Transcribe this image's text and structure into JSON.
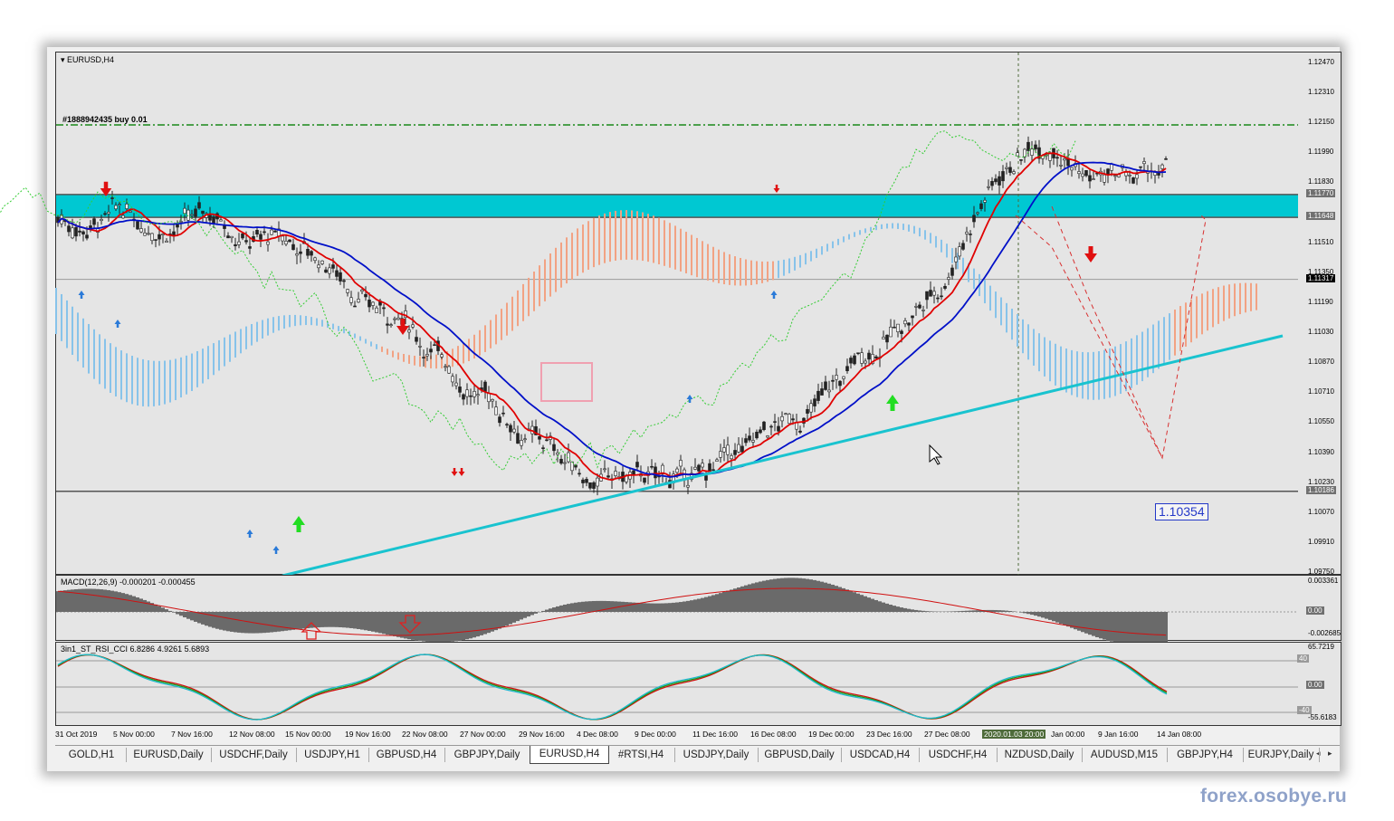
{
  "window": {
    "chart_title": "EURUSD,H4",
    "order_label": "#1888942435 buy 0.01"
  },
  "price_axis": {
    "levels": [
      "1.12470",
      "1.12310",
      "1.12150",
      "1.11990",
      "1.11830",
      "1.11510",
      "1.11350",
      "1.11190",
      "1.11030",
      "1.10870",
      "1.10710",
      "1.10550",
      "1.10390",
      "1.10230",
      "1.10070",
      "1.09910",
      "1.09750"
    ],
    "highlighted": [
      {
        "value": "1.11770",
        "color": "#707070"
      },
      {
        "value": "1.11648",
        "color": "#707070"
      },
      {
        "value": "1.11317",
        "color": "#000000"
      },
      {
        "value": "1.10186",
        "color": "#707070"
      }
    ]
  },
  "callout": {
    "value": "1.10354"
  },
  "macd": {
    "label": "MACD(12,26,9) -0.000201 -0.000455",
    "levels": [
      "0.003361",
      "0.00",
      "-0.002685"
    ]
  },
  "rsi": {
    "label": "3in1_ST_RSI_CCI 6.8286 4.9261 5.6893",
    "levels": [
      "65.7219",
      "0.00",
      "-55.6183"
    ],
    "marks": [
      "40",
      "-40"
    ]
  },
  "time_axis": {
    "labels": [
      "31 Oct 2019",
      "5 Nov 00:00",
      "7 Nov 16:00",
      "12 Nov 08:00",
      "15 Nov 00:00",
      "19 Nov 16:00",
      "22 Nov 08:00",
      "27 Nov 00:00",
      "29 Nov 16:00",
      "4 Dec 08:00",
      "9 Dec 00:00",
      "11 Dec 16:00",
      "16 Dec 08:00",
      "19 Dec 00:00",
      "23 Dec 16:00",
      "27 Dec 08:00",
      "2020.01.03 20:00",
      "Jan 00:00",
      "9 Jan 16:00",
      "14 Jan 08:00"
    ],
    "highlighted_index": 16
  },
  "tabs": [
    {
      "label": "GOLD,H1"
    },
    {
      "label": "EURUSD,Daily"
    },
    {
      "label": "USDCHF,Daily"
    },
    {
      "label": "USDJPY,H1"
    },
    {
      "label": "GBPUSD,H4"
    },
    {
      "label": "GBPJPY,Daily"
    },
    {
      "label": "EURUSD,H4",
      "active": true
    },
    {
      "label": "#RTSI,H4"
    },
    {
      "label": "USDJPY,Daily"
    },
    {
      "label": "GBPUSD,Daily"
    },
    {
      "label": "USDCAD,H4"
    },
    {
      "label": "USDCHF,H4"
    },
    {
      "label": "NZDUSD,Daily"
    },
    {
      "label": "AUDUSD,M15"
    },
    {
      "label": "GBPJPY,H4"
    },
    {
      "label": "EURJPY,Daily"
    }
  ],
  "tab_nav": {
    "prev": "◂",
    "next": "▸"
  },
  "watermark": "forex.osobye.ru",
  "colors": {
    "background": "#e5e5e5",
    "resistance_zone": "#00c8d2",
    "trendline": "#19c3cf",
    "tenkan": "#e00000",
    "kijun": "#0010c8",
    "kumo_bull": "#87c3ea",
    "kumo_bear": "#f2a283",
    "chikou": "#33cc33",
    "order_line": "#1a8a1a"
  }
}
